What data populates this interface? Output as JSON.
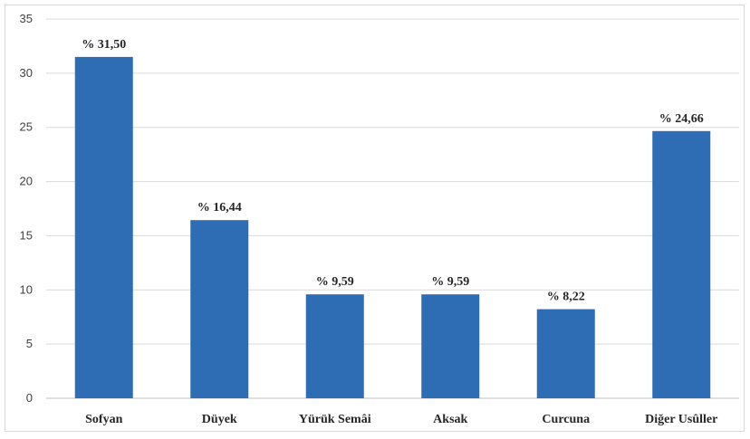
{
  "chart_data": {
    "type": "bar",
    "categories": [
      "Sofyan",
      "Düyek",
      "Yürük Semâi",
      "Aksak",
      "Curcuna",
      "Diğer Usûller"
    ],
    "values": [
      31.5,
      16.44,
      9.59,
      9.59,
      8.22,
      24.66
    ],
    "data_labels": [
      "% 31,50",
      "% 16,44",
      "% 9,59",
      "% 9,59",
      "% 8,22",
      "% 24,66"
    ],
    "y_ticks": [
      "0",
      "5",
      "10",
      "15",
      "20",
      "25",
      "30",
      "35"
    ],
    "ylim": [
      0,
      35
    ],
    "title": "",
    "xlabel": "",
    "ylabel": "",
    "grid": true,
    "legend": "none",
    "colors": {
      "bar": "#2E6DB4",
      "grid": "#d9d9d9",
      "axis": "#bfbfbf"
    }
  }
}
